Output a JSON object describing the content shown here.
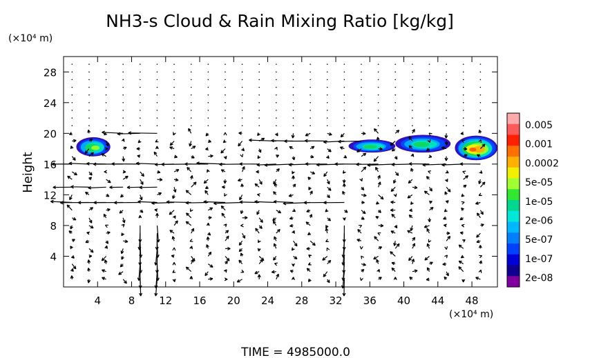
{
  "chart_data": {
    "type": "vector-field-contour",
    "title": "NH3-s Cloud & Rain Mixing Ratio [kg/kg]",
    "ylabel": "Height",
    "xlabel": "",
    "x_unit": "(×10⁴ m)",
    "y_unit": "(×10⁴ m)",
    "xlim": [
      0,
      51
    ],
    "ylim": [
      0,
      30
    ],
    "xticks": [
      4,
      8,
      12,
      16,
      20,
      24,
      28,
      32,
      36,
      40,
      44,
      48
    ],
    "yticks": [
      4,
      8,
      12,
      16,
      20,
      24,
      28
    ],
    "time_label": "TIME = 4985000.0",
    "colorbar": {
      "labels": [
        "0.005",
        "0.001",
        "0.0002",
        "5e-05",
        "1e-05",
        "2e-06",
        "5e-07",
        "1e-07",
        "2e-08"
      ],
      "colors": [
        "#ffaaaa",
        "#ff5a5a",
        "#ff2000",
        "#ff7000",
        "#ffb000",
        "#f0f000",
        "#a0ff30",
        "#30e830",
        "#00d890",
        "#00e8d8",
        "#00b8ff",
        "#0080ff",
        "#0040ff",
        "#0000d8",
        "#100090",
        "#8000a0"
      ]
    },
    "cloud_regions": [
      {
        "x": [
          1.5,
          5.5
        ],
        "y": [
          17.0,
          19.5
        ],
        "peak": "1e-05"
      },
      {
        "x": [
          33.5,
          39.0
        ],
        "y": [
          17.5,
          19.2
        ],
        "peak": "2e-06"
      },
      {
        "x": [
          39.0,
          45.5
        ],
        "y": [
          17.5,
          19.8
        ],
        "peak": "2e-06"
      },
      {
        "x": [
          46.0,
          51.0
        ],
        "y": [
          16.5,
          19.7
        ],
        "peak": "0.0002"
      }
    ],
    "jets": [
      {
        "y": 20.0,
        "x": [
          6,
          12
        ],
        "direction": "west",
        "strength": "strong"
      },
      {
        "y": 19.0,
        "x": [
          24,
          35
        ],
        "direction": "west",
        "strength": "strong"
      },
      {
        "y": 16.0,
        "x": [
          0,
          51
        ],
        "direction": "west",
        "strength": "strong"
      },
      {
        "y": 13.0,
        "x": [
          0,
          11
        ],
        "direction": "west",
        "strength": "moderate"
      },
      {
        "y": 11.0,
        "x": [
          0,
          14
        ],
        "direction": "west",
        "strength": "strong"
      },
      {
        "y": 11.0,
        "x": [
          14,
          34
        ],
        "direction": "west",
        "strength": "strong"
      }
    ]
  }
}
